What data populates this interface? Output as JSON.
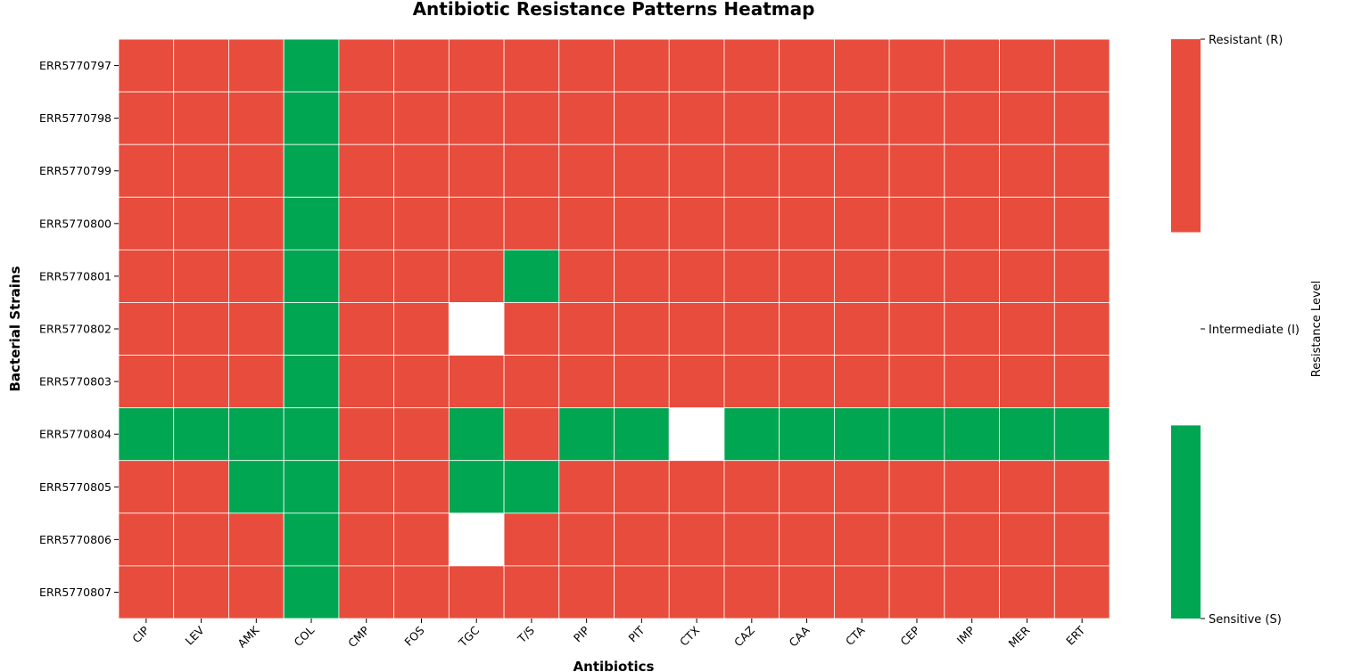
{
  "colors": {
    "resistant": "#e74c3c",
    "intermediate": "#ffffff",
    "sensitive": "#00a651",
    "gridline": "#ffffff"
  },
  "chart_data": {
    "type": "heatmap",
    "title": "Antibiotic Resistance Patterns Heatmap",
    "xlabel": "Antibiotics",
    "ylabel": "Bacterial Strains",
    "x": [
      "CIP",
      "LEV",
      "AMK",
      "COL",
      "CMP",
      "FOS",
      "TGC",
      "T/S",
      "PIP",
      "PIT",
      "CTX",
      "CAZ",
      "CAA",
      "CTA",
      "CEP",
      "IMP",
      "MER",
      "ERT"
    ],
    "y": [
      "ERR5770797",
      "ERR5770798",
      "ERR5770799",
      "ERR5770800",
      "ERR5770801",
      "ERR5770802",
      "ERR5770803",
      "ERR5770804",
      "ERR5770805",
      "ERR5770806",
      "ERR5770807"
    ],
    "values": [
      [
        2,
        2,
        2,
        0,
        2,
        2,
        2,
        2,
        2,
        2,
        2,
        2,
        2,
        2,
        2,
        2,
        2,
        2
      ],
      [
        2,
        2,
        2,
        0,
        2,
        2,
        2,
        2,
        2,
        2,
        2,
        2,
        2,
        2,
        2,
        2,
        2,
        2
      ],
      [
        2,
        2,
        2,
        0,
        2,
        2,
        2,
        2,
        2,
        2,
        2,
        2,
        2,
        2,
        2,
        2,
        2,
        2
      ],
      [
        2,
        2,
        2,
        0,
        2,
        2,
        2,
        2,
        2,
        2,
        2,
        2,
        2,
        2,
        2,
        2,
        2,
        2
      ],
      [
        2,
        2,
        2,
        0,
        2,
        2,
        2,
        0,
        2,
        2,
        2,
        2,
        2,
        2,
        2,
        2,
        2,
        2
      ],
      [
        2,
        2,
        2,
        0,
        2,
        2,
        1,
        2,
        2,
        2,
        2,
        2,
        2,
        2,
        2,
        2,
        2,
        2
      ],
      [
        2,
        2,
        2,
        0,
        2,
        2,
        2,
        2,
        2,
        2,
        2,
        2,
        2,
        2,
        2,
        2,
        2,
        2
      ],
      [
        0,
        0,
        0,
        0,
        2,
        2,
        0,
        2,
        0,
        0,
        1,
        0,
        0,
        0,
        0,
        0,
        0,
        0
      ],
      [
        2,
        2,
        0,
        0,
        2,
        2,
        0,
        0,
        2,
        2,
        2,
        2,
        2,
        2,
        2,
        2,
        2,
        2
      ],
      [
        2,
        2,
        2,
        0,
        2,
        2,
        1,
        2,
        2,
        2,
        2,
        2,
        2,
        2,
        2,
        2,
        2,
        2
      ],
      [
        2,
        2,
        2,
        0,
        2,
        2,
        2,
        2,
        2,
        2,
        2,
        2,
        2,
        2,
        2,
        2,
        2,
        2
      ]
    ],
    "value_scale": [
      0,
      2
    ],
    "colorbar": {
      "label": "Resistance Level",
      "ticks": [
        {
          "value": 2,
          "label": "Resistant (R)"
        },
        {
          "value": 1,
          "label": "Intermediate (I)"
        },
        {
          "value": 0,
          "label": "Sensitive (S)"
        }
      ]
    }
  }
}
